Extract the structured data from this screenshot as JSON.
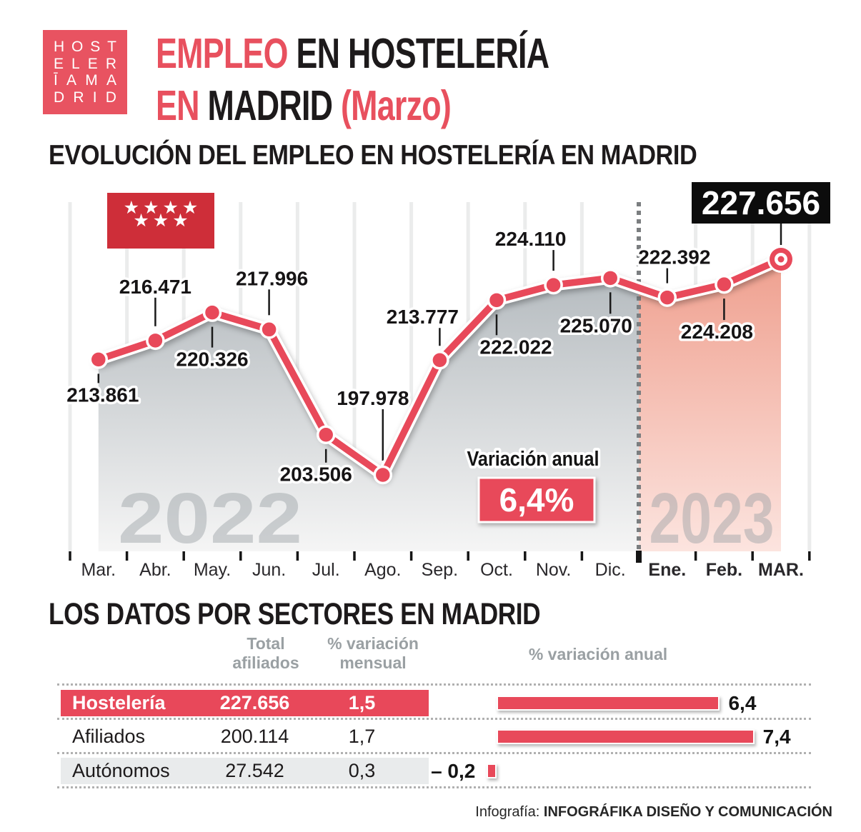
{
  "colors": {
    "accent": "#e8495a",
    "flag_red": "#ce2e39",
    "logo_red": "#e85361",
    "black_box": "#0c0c0c",
    "gray_header": "#9aa0a3",
    "shade_row": "#e9ebec"
  },
  "logo": {
    "rows": [
      "HOST",
      "ELER",
      "ĪAMA",
      "DRID"
    ]
  },
  "flag": {
    "stars_row1": "★★★★",
    "stars_row2": "★★★"
  },
  "header": {
    "line1_red": "EMPLEO",
    "line1_dark": "EN HOSTELERÍA",
    "line2_red": "EN",
    "line2_dark": "MADRID",
    "line2_note": "(Marzo)"
  },
  "chart_data": [
    {
      "type": "line",
      "title": "EVOLUCIÓN DEL EMPLEO EN HOSTELERÍA EN MADRID",
      "x": [
        "Mar.",
        "Abr.",
        "May.",
        "Jun.",
        "Jul.",
        "Ago.",
        "Sep.",
        "Oct.",
        "Nov.",
        "Dic.",
        "Ene.",
        "Feb.",
        "MAR."
      ],
      "values": [
        213861,
        216471,
        220326,
        217996,
        203506,
        197978,
        213777,
        222022,
        224110,
        225070,
        222392,
        224208,
        227656
      ],
      "ylim": [
        197978,
        227656
      ],
      "grid": "vertical",
      "year_labels": [
        "2022",
        "2023"
      ],
      "year_split_index": 10,
      "highlight_last_value": "227.656",
      "annotation": {
        "label": "Variación anual",
        "value": "6,4%"
      },
      "label_dx": [
        6,
        0,
        0,
        4,
        -14,
        -14,
        -24,
        27,
        -32,
        -20,
        10,
        -10,
        -28
      ],
      "label_dy": [
        49,
        -76,
        65,
        -72,
        55,
        -108,
        -61,
        65,
        -65,
        66,
        -57,
        66,
        -79
      ]
    },
    {
      "type": "bar",
      "orientation": "horizontal",
      "title": "% variación anual",
      "categories": [
        "Hostelería",
        "Afiliados",
        "Autónomos"
      ],
      "values": [
        6.4,
        7.4,
        -0.2
      ],
      "value_labels": [
        "6,4",
        "7,4",
        "– 0,2"
      ],
      "xlim": [
        -0.5,
        8
      ],
      "grid": "off",
      "legend": "none"
    }
  ],
  "sectors": {
    "heading": "LOS DATOS POR SECTORES EN MADRID",
    "col_total": "Total\nafiliados",
    "col_monthly": "% variación\nmensual",
    "rows": [
      {
        "name": "Hostelería",
        "total": "227.656",
        "monthly": "1,5",
        "style": "highlight"
      },
      {
        "name": "Afiliados",
        "total": "200.114",
        "monthly": "1,7",
        "style": "plain"
      },
      {
        "name": "Autónomos",
        "total": "27.542",
        "monthly": "0,3",
        "style": "shade"
      }
    ]
  },
  "footer": {
    "prefix": "Infografía: ",
    "credit": "INFOGRÁFIKA DISEÑO Y COMUNICACIÓN"
  }
}
